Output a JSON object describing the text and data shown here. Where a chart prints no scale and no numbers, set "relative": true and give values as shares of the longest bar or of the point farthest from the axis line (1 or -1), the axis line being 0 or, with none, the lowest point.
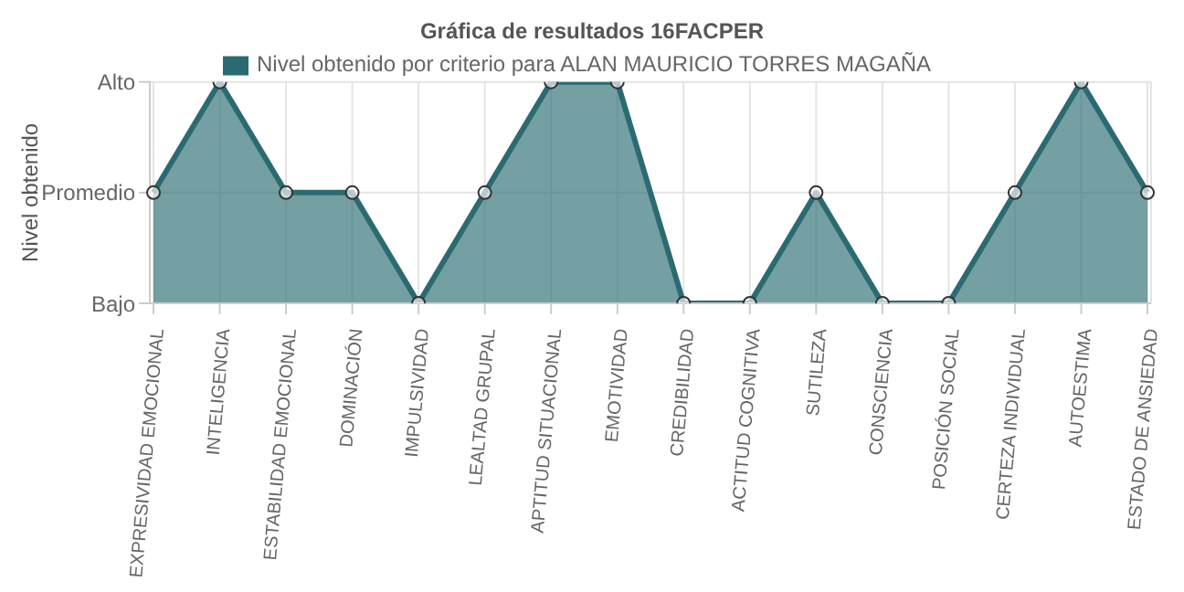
{
  "chart_data": {
    "type": "area",
    "title": "Gráfica de resultados 16FACPER",
    "ylabel": "Nivel obtenido",
    "categories": [
      "EXPRESIVIDAD EMOCIONAL",
      "INTELIGENCIA",
      "ESTABILIDAD EMOCIONAL",
      "DOMINACIÓN",
      "IMPULSIVIDAD",
      "LEALTAD GRUPAL",
      "APTITUD SITUACIONAL",
      "EMOTIVIDAD",
      "CREDIBILIDAD",
      "ACTITUD COGNITIVA",
      "SUTILEZA",
      "CONSCIENCIA",
      "POSICIÓN SOCIAL",
      "CERTEZA INDIVIDUAL",
      "AUTOESTIMA",
      "ESTADO DE ANSIEDAD"
    ],
    "series": [
      {
        "name": "Nivel obtenido por criterio para ALAN MAURICIO TORRES MAGAÑA",
        "color": "#2a6b72",
        "values": [
          0.5,
          1,
          0.5,
          0.5,
          0,
          0.5,
          1,
          1,
          0,
          0,
          0.5,
          0,
          0,
          0.5,
          1,
          0.5
        ]
      }
    ],
    "relative": true,
    "y_categories": [
      "Alto",
      "Promedio",
      "Bajo"
    ],
    "grid": true,
    "legend": "top",
    "marker": "circle"
  }
}
